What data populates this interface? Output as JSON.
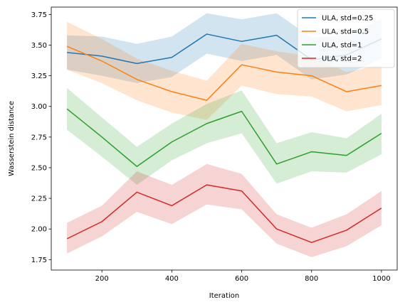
{
  "chart_data": {
    "type": "line",
    "xlabel": "Iteration",
    "ylabel": "Wasserstein distance",
    "xlim": [
      55,
      1045
    ],
    "ylim": [
      1.665,
      3.81
    ],
    "xticks": [
      200,
      400,
      600,
      800,
      1000
    ],
    "yticks": [
      1.75,
      2.0,
      2.25,
      2.5,
      2.75,
      3.0,
      3.25,
      3.5,
      3.75
    ],
    "ytick_labels": [
      "1.75",
      "2.00",
      "2.25",
      "2.50",
      "2.75",
      "3.00",
      "3.25",
      "3.50",
      "3.75"
    ],
    "grid": false,
    "legend_position": "top-right",
    "x": [
      100,
      200,
      300,
      400,
      500,
      600,
      700,
      800,
      900,
      1000
    ],
    "series": [
      {
        "name": "ULA, std=0.25",
        "color": "#1f77b4",
        "values": [
          3.44,
          3.41,
          3.35,
          3.4,
          3.59,
          3.53,
          3.58,
          3.38,
          3.42,
          3.55
        ],
        "lower": [
          3.3,
          3.25,
          3.19,
          3.24,
          3.43,
          3.37,
          3.42,
          3.22,
          3.26,
          3.39
        ],
        "upper": [
          3.58,
          3.57,
          3.51,
          3.57,
          3.76,
          3.71,
          3.76,
          3.56,
          3.58,
          3.71
        ]
      },
      {
        "name": "ULA, std=0.5",
        "color": "#ff7f0e",
        "values": [
          3.49,
          3.37,
          3.22,
          3.12,
          3.05,
          3.34,
          3.28,
          3.25,
          3.12,
          3.17
        ],
        "lower": [
          3.3,
          3.19,
          3.05,
          2.95,
          2.89,
          3.17,
          3.1,
          3.08,
          2.96,
          3.01
        ],
        "upper": [
          3.69,
          3.55,
          3.39,
          3.29,
          3.21,
          3.51,
          3.45,
          3.41,
          3.28,
          3.34
        ]
      },
      {
        "name": "ULA, std=1",
        "color": "#2ca02c",
        "values": [
          2.98,
          2.75,
          2.51,
          2.71,
          2.86,
          2.96,
          2.53,
          2.63,
          2.6,
          2.78
        ],
        "lower": [
          2.81,
          2.59,
          2.36,
          2.56,
          2.7,
          2.78,
          2.37,
          2.47,
          2.46,
          2.61
        ],
        "upper": [
          3.15,
          2.91,
          2.67,
          2.86,
          3.02,
          3.13,
          2.7,
          2.79,
          2.74,
          2.94
        ]
      },
      {
        "name": "ULA, std=2",
        "color": "#d62728",
        "values": [
          1.92,
          2.06,
          2.3,
          2.19,
          2.36,
          2.31,
          2.0,
          1.89,
          1.99,
          2.17
        ],
        "lower": [
          1.8,
          1.94,
          2.14,
          2.04,
          2.2,
          2.16,
          1.88,
          1.77,
          1.86,
          2.03
        ],
        "upper": [
          2.05,
          2.19,
          2.47,
          2.36,
          2.53,
          2.45,
          2.12,
          2.01,
          2.12,
          2.31
        ]
      }
    ]
  }
}
